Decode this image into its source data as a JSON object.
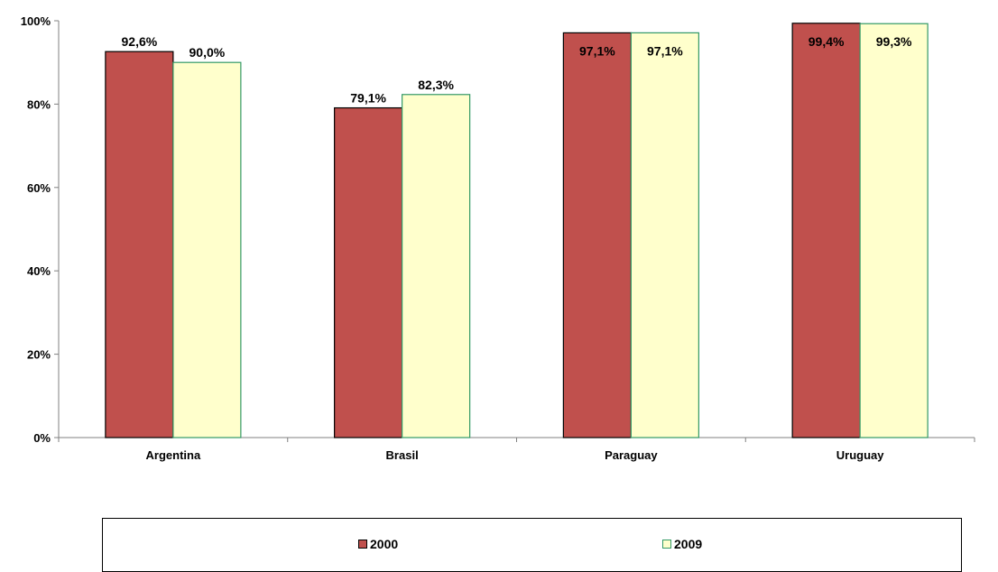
{
  "colors": {
    "series_2000_fill": "#C0504D",
    "series_2000_stroke": "#000000",
    "series_2009_fill": "#FFFFCC",
    "series_2009_stroke": "#339966",
    "axis": "#808080"
  },
  "chart_data": {
    "type": "bar",
    "categories": [
      "Argentina",
      "Brasil",
      "Paraguay",
      "Uruguay"
    ],
    "series": [
      {
        "name": "2000",
        "values": [
          92.6,
          79.1,
          97.1,
          99.4
        ],
        "labels": [
          "92,6%",
          "79,1%",
          "97,1%",
          "99,4%"
        ]
      },
      {
        "name": "2009",
        "values": [
          90.0,
          82.3,
          97.1,
          99.3
        ],
        "labels": [
          "90,0%",
          "82,3%",
          "97,1%",
          "99,3%"
        ]
      }
    ],
    "ylim": [
      0,
      100
    ],
    "yticks": [
      0,
      20,
      40,
      60,
      80,
      100
    ],
    "ytick_labels": [
      "0%",
      "20%",
      "40%",
      "60%",
      "80%",
      "100%"
    ],
    "grid": false,
    "legend_position": "bottom"
  }
}
